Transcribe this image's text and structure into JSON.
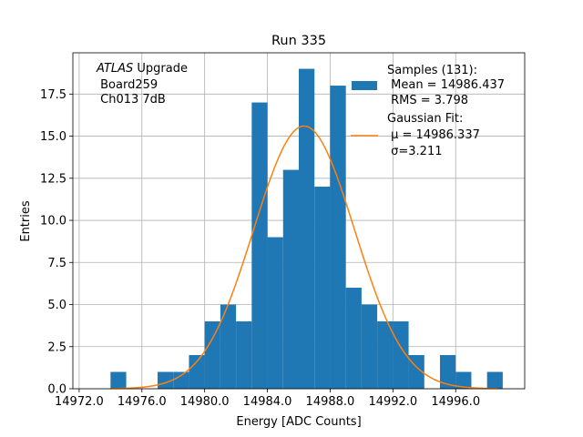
{
  "chart_data": {
    "type": "bar",
    "title": "Run 335",
    "xlabel": "Energy [ADC Counts]",
    "ylabel": "Entries",
    "xlim": [
      14971.6,
      15000.4
    ],
    "ylim": [
      0,
      19.95
    ],
    "grid": true,
    "xticks": [
      14972.0,
      14976.0,
      14980.0,
      14984.0,
      14988.0,
      14992.0,
      14996.0
    ],
    "xtick_labels": [
      "14972.0",
      "14976.0",
      "14980.0",
      "14984.0",
      "14988.0",
      "14992.0",
      "14996.0"
    ],
    "yticks": [
      0,
      2.5,
      5,
      7.5,
      10,
      12.5,
      15,
      17.5
    ],
    "ytick_labels": [
      "0.0",
      "2.5",
      "5.0",
      "7.5",
      "10.0",
      "12.5",
      "15.0",
      "17.5"
    ],
    "bin_width": 1,
    "bin_edges_start": [
      14974,
      14975,
      14976,
      14977,
      14978,
      14979,
      14980,
      14981,
      14982,
      14983,
      14984,
      14985,
      14986,
      14987,
      14988,
      14989,
      14990,
      14991,
      14992,
      14993,
      14994,
      14995,
      14996,
      14997,
      14998
    ],
    "values": [
      1,
      0,
      0,
      1,
      1,
      2,
      4,
      5,
      4,
      17,
      9,
      13,
      19,
      12,
      18,
      6,
      5,
      4,
      4,
      2,
      0,
      2,
      1,
      0,
      1
    ],
    "fit": {
      "type": "gaussian",
      "mu": 14986.337,
      "sigma": 3.211,
      "amplitude": 15.6,
      "range": [
        14974,
        14998.7
      ]
    },
    "colors": {
      "bars": "#1f77b4",
      "fit": "#ff7f0e",
      "grid": "#b0b0b0"
    },
    "annotation": {
      "italic": "ATLAS",
      "line1_rest": " Upgrade",
      "line2": " Board259",
      "line3": " Ch013 7dB"
    },
    "legend": {
      "placement": "top-right",
      "samples": {
        "line1": "Samples (131):",
        "line2": " Mean = 14986.437",
        "line3": " RMS = 3.798"
      },
      "fit": {
        "line1": "Gaussian Fit:",
        "line2": " μ = 14986.337",
        "line3": " σ=3.211"
      }
    }
  }
}
